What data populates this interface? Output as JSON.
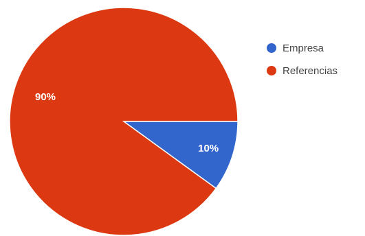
{
  "chart_data": {
    "type": "pie",
    "slices": [
      {
        "label": "Empresa",
        "value": 10,
        "display": "10%",
        "color": "#3366cc"
      },
      {
        "label": "Referencias",
        "value": 90,
        "display": "90%",
        "color": "#dc3912"
      }
    ],
    "legend_position": "right",
    "start_angle_deg": 0,
    "direction": "clockwise"
  }
}
